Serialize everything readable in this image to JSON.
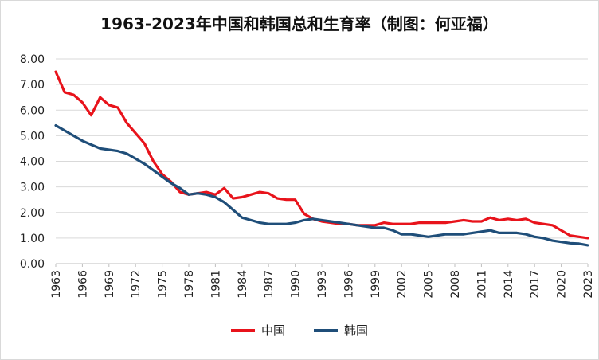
{
  "chart_data": {
    "type": "line",
    "title": "1963-2023年中国和韩国总和生育率（制图：何亚福）",
    "y_ticks": [
      "0.00",
      "1.00",
      "2.00",
      "3.00",
      "4.00",
      "5.00",
      "6.00",
      "7.00",
      "8.00"
    ],
    "x_ticks": [
      "1963",
      "1966",
      "1969",
      "1972",
      "1975",
      "1978",
      "1981",
      "1984",
      "1987",
      "1990",
      "1993",
      "1996",
      "1999",
      "2002",
      "2005",
      "2008",
      "2011",
      "2014",
      "2017",
      "2020",
      "2023"
    ],
    "ylim": [
      0,
      8
    ],
    "xlim": [
      1963,
      2023
    ],
    "grid": true,
    "legend_position": "bottom",
    "x": [
      1963,
      1964,
      1965,
      1966,
      1967,
      1968,
      1969,
      1970,
      1971,
      1972,
      1973,
      1974,
      1975,
      1976,
      1977,
      1978,
      1979,
      1980,
      1981,
      1982,
      1983,
      1984,
      1985,
      1986,
      1987,
      1988,
      1989,
      1990,
      1991,
      1992,
      1993,
      1994,
      1995,
      1996,
      1997,
      1998,
      1999,
      2000,
      2001,
      2002,
      2003,
      2004,
      2005,
      2006,
      2007,
      2008,
      2009,
      2010,
      2011,
      2012,
      2013,
      2014,
      2015,
      2016,
      2017,
      2018,
      2019,
      2020,
      2021,
      2022,
      2023
    ],
    "series": [
      {
        "name": "中国",
        "color": "#e8131b",
        "values": [
          7.5,
          6.7,
          6.6,
          6.3,
          5.8,
          6.5,
          6.2,
          6.1,
          5.5,
          5.1,
          4.7,
          4.0,
          3.5,
          3.2,
          2.8,
          2.7,
          2.75,
          2.8,
          2.7,
          2.95,
          2.55,
          2.6,
          2.7,
          2.8,
          2.75,
          2.55,
          2.5,
          2.5,
          1.95,
          1.75,
          1.65,
          1.6,
          1.55,
          1.55,
          1.5,
          1.5,
          1.5,
          1.6,
          1.55,
          1.55,
          1.55,
          1.6,
          1.6,
          1.6,
          1.6,
          1.65,
          1.7,
          1.65,
          1.65,
          1.8,
          1.7,
          1.75,
          1.7,
          1.75,
          1.6,
          1.55,
          1.5,
          1.3,
          1.1,
          1.05,
          1.0
        ]
      },
      {
        "name": "韩国",
        "color": "#1f4e79",
        "values": [
          5.4,
          5.2,
          5.0,
          4.8,
          4.65,
          4.5,
          4.45,
          4.4,
          4.3,
          4.1,
          3.9,
          3.65,
          3.4,
          3.15,
          2.95,
          2.7,
          2.75,
          2.7,
          2.6,
          2.4,
          2.1,
          1.8,
          1.7,
          1.6,
          1.55,
          1.55,
          1.55,
          1.6,
          1.7,
          1.75,
          1.7,
          1.65,
          1.6,
          1.55,
          1.5,
          1.45,
          1.4,
          1.4,
          1.3,
          1.15,
          1.15,
          1.1,
          1.05,
          1.1,
          1.15,
          1.15,
          1.15,
          1.2,
          1.25,
          1.3,
          1.2,
          1.2,
          1.2,
          1.15,
          1.05,
          1.0,
          0.9,
          0.85,
          0.8,
          0.78,
          0.72
        ]
      }
    ]
  }
}
